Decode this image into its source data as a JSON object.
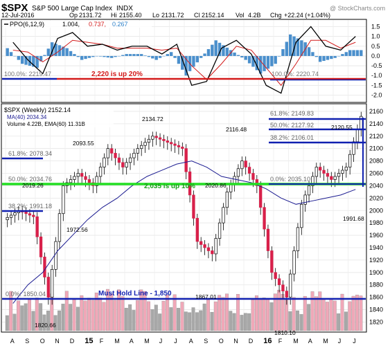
{
  "header": {
    "symbol": "$SPX",
    "name": "S&P 500 Large Cap Index",
    "exchange": "INDX",
    "watermark": "@ StockCharts.com",
    "date": "12-Jul-2016",
    "op_label": "Op",
    "op": "2131.72",
    "hi_label": "Hi",
    "hi": "2155.40",
    "lo_label": "Lo",
    "lo": "2131.72",
    "cl_label": "Cl",
    "cl": "2152.14",
    "vol_label": "Vol",
    "vol": "4.2B",
    "chg_label": "Chg",
    "chg": "+22.24 (+1.04%)"
  },
  "colors": {
    "accent_red": "#d31a1a",
    "accent_blue": "#1020b0",
    "green_line": "#22dd22",
    "candle": "#d8204a",
    "ma_blue": "#1a1a90",
    "histogram": "#4a8fcc",
    "volume_pink": "#f0a8b8",
    "volume_gray": "#a8a8a8"
  },
  "ppo_panel": {
    "legend_name": "PPO(6,12,9)",
    "legend_ppo": "1.004,",
    "legend_signal": "0.737,",
    "legend_hist": "0.267",
    "y_ticks": [
      "1.5",
      "1.0",
      "0.5",
      "0.0",
      "-0.5",
      "-1.0",
      "-1.5",
      "-2.0"
    ],
    "fib_label": "100.0%: 2219.47",
    "fib_label_right": "100.0%: 2220.74",
    "annotation": "2,220 is up 20%"
  },
  "price_panel": {
    "legend_title": "$SPX (Weekly) 2152.14",
    "legend_ma": "MA(40) 2034.34",
    "legend_vol": "Volume 4.22B, EMA(60) 11.31B",
    "y_ticks": [
      "2160",
      "2140",
      "2120",
      "2100",
      "2080",
      "2060",
      "2040",
      "2020",
      "2000",
      "1980",
      "1960",
      "1940",
      "1920",
      "1900",
      "1880",
      "1860",
      "1840",
      "1820"
    ],
    "fib_left": [
      "61.8%: 2078.34",
      "50.0%: 2034.76",
      "38.2%: 1991.18",
      "0.0%: 1850.04"
    ],
    "fib_right": [
      "61.8%: 2149.83",
      "50.0%: 2127.92",
      "38.2%: 2106.01",
      "0.0%: 2035.10"
    ],
    "price_labels": [
      "2134.72",
      "2093.55",
      "2116.48",
      "2120.55",
      "2019.26",
      "1972.56",
      "2020.86",
      "1991.68",
      "1867.01",
      "1820.66",
      "1810.10"
    ],
    "annotation_green": "2,035 is up 10%",
    "annotation_support": "Must Hold Line - 1,850"
  },
  "x_axis": [
    "A",
    "S",
    "O",
    "N",
    "D",
    "15",
    "F",
    "M",
    "A",
    "M",
    "J",
    "J",
    "A",
    "S",
    "O",
    "N",
    "D",
    "16",
    "F",
    "M",
    "A",
    "M",
    "J",
    "J"
  ],
  "chart_data": [
    {
      "type": "line",
      "title": "PPO(6,12,9)",
      "ylim": [
        -2.3,
        1.8
      ],
      "x": [
        "2014-08",
        "2014-09",
        "2014-10",
        "2014-11",
        "2014-12",
        "2015-01",
        "2015-02",
        "2015-03",
        "2015-04",
        "2015-05",
        "2015-06",
        "2015-07",
        "2015-08",
        "2015-09",
        "2015-10",
        "2015-11",
        "2015-12",
        "2016-01",
        "2016-02",
        "2016-03",
        "2016-04",
        "2016-05",
        "2016-06",
        "2016-07"
      ],
      "series": [
        {
          "name": "PPO",
          "values": [
            0.7,
            -0.2,
            -0.9,
            0.9,
            1.2,
            0.5,
            0.6,
            0.3,
            0.5,
            0.5,
            0.1,
            0.6,
            -1.5,
            -1.3,
            0.4,
            0.8,
            0.1,
            -1.5,
            -1.9,
            0.7,
            1.5,
            0.5,
            0.3,
            1.0
          ]
        },
        {
          "name": "Signal",
          "values": [
            0.3,
            0.2,
            -0.3,
            0.2,
            0.8,
            0.7,
            0.6,
            0.4,
            0.4,
            0.4,
            0.3,
            0.4,
            -0.5,
            -1.2,
            -0.4,
            0.5,
            0.3,
            -0.6,
            -1.5,
            -0.4,
            0.8,
            0.8,
            0.4,
            0.7
          ]
        },
        {
          "name": "Histogram",
          "values": [
            0.4,
            -0.4,
            -0.6,
            0.7,
            0.4,
            -0.2,
            0.0,
            -0.1,
            0.1,
            0.1,
            -0.2,
            0.2,
            -1.0,
            -0.1,
            0.8,
            0.3,
            -0.2,
            -0.9,
            -0.4,
            1.1,
            0.7,
            -0.3,
            -0.1,
            0.3
          ]
        }
      ]
    },
    {
      "type": "line",
      "title": "$SPX (Weekly)",
      "ylim": [
        1806,
        2170
      ],
      "x": [
        "2014-08",
        "2014-09",
        "2014-10",
        "2014-11",
        "2014-12",
        "2015-01",
        "2015-02",
        "2015-03",
        "2015-04",
        "2015-05",
        "2015-06",
        "2015-07",
        "2015-08",
        "2015-09",
        "2015-10",
        "2015-11",
        "2015-12",
        "2016-01",
        "2016-02",
        "2016-03",
        "2016-04",
        "2016-05",
        "2016-06",
        "2016-07"
      ],
      "series": [
        {
          "name": "$SPX",
          "values": [
            2000,
            1990,
            1860,
            2040,
            2060,
            2040,
            2100,
            2070,
            2100,
            2120,
            2110,
            2100,
            1950,
            1930,
            2030,
            2080,
            2040,
            1900,
            1860,
            2010,
            2070,
            2050,
            2070,
            2152
          ]
        },
        {
          "name": "MA(40)",
          "values": [
            1850,
            1880,
            1900,
            1935,
            1960,
            1985,
            2005,
            2020,
            2040,
            2055,
            2065,
            2075,
            2080,
            2070,
            2055,
            2050,
            2045,
            2035,
            2020,
            2010,
            2015,
            2020,
            2025,
            2034
          ]
        }
      ],
      "reference_lines": [
        1850,
        2035,
        2220
      ]
    }
  ]
}
